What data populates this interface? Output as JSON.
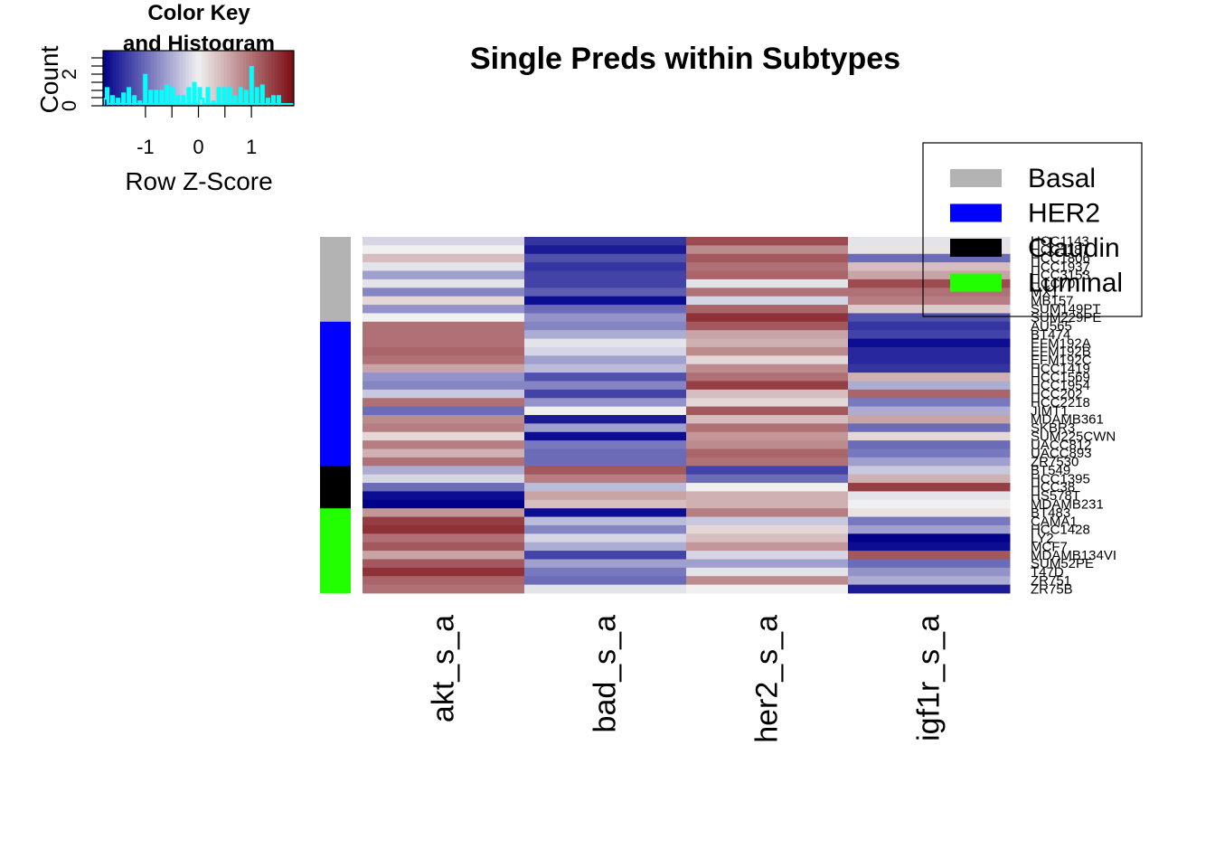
{
  "chart_data": {
    "type": "heatmap",
    "title": "Single Preds within Subtypes",
    "columns": [
      "akt_s_a",
      "bad_s_a",
      "her2_s_a",
      "igf1r_s_a"
    ],
    "rows": [
      "HCC1143",
      "HCC1187",
      "HCC1806",
      "HCC1937",
      "HCC3153",
      "HCC70",
      "MX1",
      "MB157",
      "SUM149PT",
      "SUM229PE",
      "AU565",
      "BT474",
      "EFM192A",
      "EFM192B",
      "EFM192C",
      "HCC1419",
      "HCC1569",
      "HCC1954",
      "HCC202",
      "HCC2218",
      "JIMT1",
      "MDAMB361",
      "SKBR3",
      "SUM225CWN",
      "UACC812",
      "UACC893",
      "ZR7530",
      "BT549",
      "HCC1395",
      "HCC38",
      "HS578T",
      "MDAMB231",
      "BT483",
      "CAMA1",
      "HCC1428",
      "LY2",
      "MCF7",
      "MDAMB134VI",
      "SUM52PE",
      "T47D",
      "ZR751",
      "ZR75B"
    ],
    "subtype_of_row": [
      "Basal",
      "Basal",
      "Basal",
      "Basal",
      "Basal",
      "Basal",
      "Basal",
      "Basal",
      "Basal",
      "Basal",
      "HER2",
      "HER2",
      "HER2",
      "HER2",
      "HER2",
      "HER2",
      "HER2",
      "HER2",
      "HER2",
      "HER2",
      "HER2",
      "HER2",
      "HER2",
      "HER2",
      "HER2",
      "HER2",
      "HER2",
      "Claudin",
      "Claudin",
      "Claudin",
      "Claudin",
      "Claudin",
      "Luminal",
      "Luminal",
      "Luminal",
      "Luminal",
      "Luminal",
      "Luminal",
      "Luminal",
      "Luminal",
      "Luminal",
      "Luminal"
    ],
    "values": [
      [
        -0.2,
        -1.4,
        1.3,
        -0.1
      ],
      [
        0.0,
        -1.6,
        0.8,
        0.1
      ],
      [
        0.4,
        -1.2,
        1.2,
        -1.0
      ],
      [
        -0.1,
        -1.4,
        1.0,
        0.4
      ],
      [
        -0.6,
        -1.3,
        1.1,
        0.6
      ],
      [
        -0.1,
        -1.3,
        -0.1,
        1.3
      ],
      [
        -0.8,
        -1.1,
        1.0,
        1.0
      ],
      [
        0.2,
        -1.7,
        -0.2,
        0.9
      ],
      [
        -0.7,
        -1.0,
        1.1,
        0.3
      ],
      [
        0.0,
        -0.7,
        1.5,
        -1.2
      ],
      [
        1.0,
        -0.8,
        1.2,
        -1.4
      ],
      [
        1.0,
        -0.5,
        0.6,
        -1.3
      ],
      [
        1.0,
        -0.1,
        0.5,
        -1.7
      ],
      [
        1.1,
        -0.2,
        0.8,
        -1.5
      ],
      [
        1.0,
        -0.6,
        0.2,
        -1.5
      ],
      [
        0.6,
        -0.4,
        0.8,
        -1.4
      ],
      [
        -0.7,
        -1.2,
        1.0,
        0.5
      ],
      [
        -0.8,
        -0.8,
        1.4,
        -0.5
      ],
      [
        -0.3,
        -1.3,
        0.4,
        1.1
      ],
      [
        1.0,
        -0.7,
        0.2,
        -0.9
      ],
      [
        -1.0,
        0.0,
        1.2,
        -0.5
      ],
      [
        0.8,
        -1.6,
        0.4,
        0.6
      ],
      [
        0.9,
        -0.6,
        1.0,
        -1.0
      ],
      [
        0.2,
        -1.7,
        0.7,
        0.2
      ],
      [
        0.9,
        -0.9,
        0.8,
        -1.0
      ],
      [
        0.5,
        -1.0,
        1.1,
        -0.9
      ],
      [
        1.0,
        -1.0,
        1.0,
        -0.6
      ],
      [
        -0.5,
        1.2,
        -1.3,
        -0.3
      ],
      [
        -0.2,
        0.9,
        -1.0,
        0.5
      ],
      [
        -1.0,
        -0.4,
        0.0,
        1.4
      ],
      [
        -1.7,
        0.6,
        0.5,
        -0.1
      ],
      [
        -1.8,
        0.4,
        0.5,
        0.0
      ],
      [
        0.7,
        -1.7,
        0.9,
        0.1
      ],
      [
        1.4,
        -0.4,
        -0.3,
        -0.9
      ],
      [
        1.5,
        -0.8,
        0.2,
        -0.6
      ],
      [
        1.0,
        -0.2,
        0.4,
        -1.8
      ],
      [
        1.2,
        -0.5,
        0.7,
        -1.7
      ],
      [
        0.6,
        -1.3,
        -0.2,
        1.2
      ],
      [
        1.2,
        -0.6,
        -0.6,
        -1.0
      ],
      [
        1.5,
        -0.9,
        -0.1,
        -0.7
      ],
      [
        1.1,
        -1.0,
        0.8,
        -0.5
      ],
      [
        1.0,
        -0.1,
        0.0,
        -1.6
      ]
    ],
    "subtype_colors": {
      "Basal": "#b3b3b3",
      "HER2": "#0000ff",
      "Claudin": "#000000",
      "Luminal": "#22ff00"
    },
    "color_scale": {
      "low": "#00008b",
      "mid": "#f0f0f0",
      "high": "#7b0c13",
      "range": [
        -1.8,
        1.8
      ]
    },
    "legend": {
      "position": "top-right",
      "entries": [
        {
          "label": "Basal",
          "color": "#b3b3b3"
        },
        {
          "label": "HER2",
          "color": "#0000ff"
        },
        {
          "label": "Claudin",
          "color": "#000000"
        },
        {
          "label": "Luminal",
          "color": "#22ff00"
        }
      ]
    },
    "color_key": {
      "title_line1": "Color Key",
      "title_line2": "and Histogram",
      "xlabel": "Row Z-Score",
      "ylabel": "Count",
      "x_ticks": [
        "-1",
        "0",
        "1"
      ],
      "y_ticks": [
        "0",
        "2"
      ],
      "histogram_color": "#00ffff"
    }
  }
}
